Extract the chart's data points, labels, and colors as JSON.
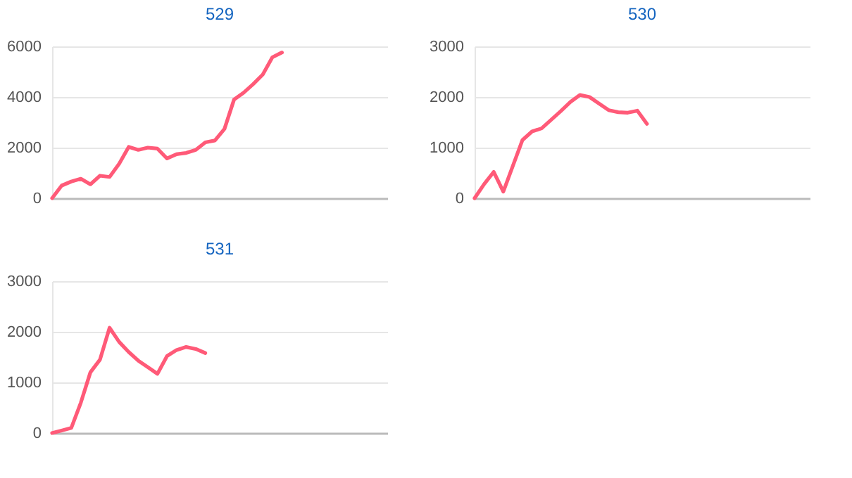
{
  "chart_data": [
    {
      "type": "line",
      "title": "529",
      "categories": [
        null,
        null,
        null,
        null,
        null,
        null,
        null,
        null,
        null,
        null,
        null,
        null,
        null,
        null,
        null,
        null,
        null,
        null,
        null,
        null,
        null,
        null,
        null,
        null,
        null,
        null,
        null,
        null,
        null,
        null,
        null,
        null,
        null,
        null,
        null,
        null
      ],
      "series": [
        {
          "color": "#ff5a78",
          "values": [
            0,
            500,
            660,
            770,
            550,
            890,
            840,
            1360,
            2030,
            1910,
            2000,
            1960,
            1570,
            1740,
            1790,
            1910,
            2210,
            2280,
            2740,
            3900,
            4170,
            4510,
            4890,
            5570,
            5760,
            null,
            null,
            null,
            null,
            null,
            null,
            null,
            null,
            null,
            null,
            null
          ]
        }
      ],
      "ylim": [
        0,
        6000
      ],
      "yticks": [
        0,
        2000,
        4000,
        6000
      ],
      "grid": "y",
      "tick_labels": "y"
    },
    {
      "type": "line",
      "title": "530",
      "categories": [
        null,
        null,
        null,
        null,
        null,
        null,
        null,
        null,
        null,
        null,
        null,
        null,
        null,
        null,
        null,
        null,
        null,
        null,
        null,
        null,
        null,
        null,
        null,
        null,
        null,
        null,
        null,
        null,
        null,
        null,
        null,
        null,
        null,
        null,
        null,
        null
      ],
      "series": [
        {
          "color": "#ff5a78",
          "values": [
            0,
            280,
            520,
            130,
            640,
            1150,
            1320,
            1380,
            1550,
            1720,
            1900,
            2040,
            2000,
            1870,
            1740,
            1700,
            1690,
            1730,
            1470,
            null,
            null,
            null,
            null,
            null,
            null,
            null,
            null,
            null,
            null,
            null,
            null,
            null,
            null,
            null,
            null,
            null
          ]
        }
      ],
      "ylim": [
        0,
        3000
      ],
      "yticks": [
        0,
        1000,
        2000,
        3000
      ],
      "grid": "y",
      "tick_labels": "y"
    },
    {
      "type": "line",
      "title": "531",
      "categories": [
        null,
        null,
        null,
        null,
        null,
        null,
        null,
        null,
        null,
        null,
        null,
        null,
        null,
        null,
        null,
        null,
        null,
        null,
        null,
        null,
        null,
        null,
        null,
        null,
        null,
        null,
        null,
        null,
        null,
        null,
        null,
        null,
        null,
        null,
        null,
        null
      ],
      "series": [
        {
          "color": "#ff5a78",
          "values": [
            0,
            50,
            100,
            600,
            1200,
            1450,
            2080,
            1800,
            1600,
            1430,
            1300,
            1170,
            1520,
            1640,
            1700,
            1660,
            1580,
            null,
            null,
            null,
            null,
            null,
            null,
            null,
            null,
            null,
            null,
            null,
            null,
            null,
            null,
            null,
            null,
            null,
            null,
            null
          ]
        }
      ],
      "ylim": [
        0,
        3000
      ],
      "yticks": [
        0,
        1000,
        2000,
        3000
      ],
      "grid": "y",
      "tick_labels": "y"
    }
  ]
}
